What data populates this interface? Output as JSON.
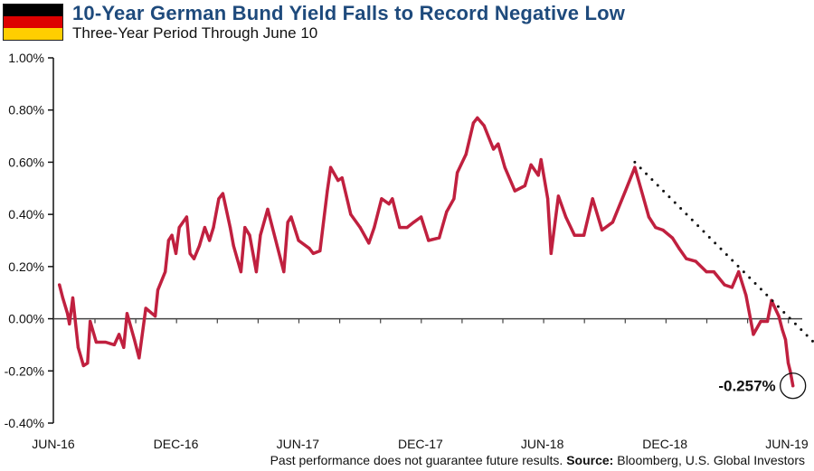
{
  "header": {
    "title": "10-Year German Bund Yield Falls to Record Negative Low",
    "subtitle": "Three-Year Period Through June 10",
    "flag_colors": [
      "#000000",
      "#dd0000",
      "#ffce00"
    ]
  },
  "footer": {
    "disclaimer": "Past performance does not guarantee future results.",
    "source_label": "Source:",
    "source_text": "Bloomberg, U.S. Global Investors"
  },
  "chart_data": {
    "type": "line",
    "title": "10-Year German Bund Yield Falls to Record Negative Low",
    "subtitle": "Three-Year Period Through June 10",
    "xlabel": "",
    "ylabel": "",
    "ylim": [
      -0.4,
      1.0
    ],
    "y_ticks": [
      "1.00%",
      "0.80%",
      "0.60%",
      "0.40%",
      "0.20%",
      "0.00%",
      "-0.20%",
      "-0.40%"
    ],
    "y_tick_values": [
      1.0,
      0.8,
      0.6,
      0.4,
      0.2,
      0.0,
      -0.2,
      -0.4
    ],
    "x_ticks": [
      {
        "label": "JUN-16",
        "date": "2016-06-01"
      },
      {
        "label": "DEC-16",
        "date": "2016-12-01"
      },
      {
        "label": "JUN-17",
        "date": "2017-06-01"
      },
      {
        "label": "DEC-17",
        "date": "2017-12-01"
      },
      {
        "label": "JUN-18",
        "date": "2018-06-01"
      },
      {
        "label": "DEC-18",
        "date": "2018-12-01"
      },
      {
        "label": "JUN-19",
        "date": "2019-06-01"
      }
    ],
    "grid": false,
    "line_color": "#c0203f",
    "series": [
      {
        "x": [
          "2016-06-10",
          "2016-06-15",
          "2016-06-22",
          "2016-06-25",
          "2016-06-30",
          "2016-07-08",
          "2016-07-16",
          "2016-07-22",
          "2016-07-26",
          "2016-08-04",
          "2016-08-18",
          "2016-08-31",
          "2016-09-07",
          "2016-09-14",
          "2016-09-19",
          "2016-09-30",
          "2016-10-07",
          "2016-10-17",
          "2016-10-31",
          "2016-11-04",
          "2016-11-15",
          "2016-11-20",
          "2016-11-25",
          "2016-12-01",
          "2016-12-06",
          "2016-12-17",
          "2016-12-22",
          "2016-12-28",
          "2017-01-05",
          "2017-01-13",
          "2017-01-20",
          "2017-01-26",
          "2017-02-03",
          "2017-02-09",
          "2017-02-20",
          "2017-02-25",
          "2017-03-08",
          "2017-03-14",
          "2017-03-21",
          "2017-03-31",
          "2017-04-06",
          "2017-04-17",
          "2017-05-01",
          "2017-05-11",
          "2017-05-17",
          "2017-05-22",
          "2017-06-02",
          "2017-06-18",
          "2017-06-24",
          "2017-07-04",
          "2017-07-15",
          "2017-07-20",
          "2017-07-31",
          "2017-08-06",
          "2017-08-19",
          "2017-09-02",
          "2017-09-15",
          "2017-09-23",
          "2017-10-04",
          "2017-10-15",
          "2017-10-20",
          "2017-10-31",
          "2017-11-11",
          "2017-11-21",
          "2017-12-02",
          "2017-12-13",
          "2017-12-29",
          "2018-01-09",
          "2018-01-20",
          "2018-01-25",
          "2018-02-07",
          "2018-02-18",
          "2018-02-24",
          "2018-03-06",
          "2018-03-20",
          "2018-03-27",
          "2018-04-06",
          "2018-04-21",
          "2018-05-06",
          "2018-05-15",
          "2018-05-26",
          "2018-05-30",
          "2018-06-09",
          "2018-06-14",
          "2018-06-25",
          "2018-07-06",
          "2018-07-19",
          "2018-08-02",
          "2018-08-15",
          "2018-08-29",
          "2018-09-14",
          "2018-10-03",
          "2018-10-17",
          "2018-10-27",
          "2018-11-07",
          "2018-11-17",
          "2018-11-28",
          "2018-12-12",
          "2018-12-22",
          "2019-01-02",
          "2019-01-16",
          "2019-02-01",
          "2019-02-12",
          "2019-02-28",
          "2019-03-11",
          "2019-03-21",
          "2019-04-01",
          "2019-04-12",
          "2019-04-23",
          "2019-05-03",
          "2019-05-09",
          "2019-05-20",
          "2019-05-25",
          "2019-05-30",
          "2019-06-03",
          "2019-06-06",
          "2019-06-10"
        ],
        "values": [
          0.13,
          0.08,
          0.02,
          -0.02,
          0.08,
          -0.11,
          -0.18,
          -0.17,
          -0.01,
          -0.09,
          -0.09,
          -0.1,
          -0.06,
          -0.11,
          0.02,
          -0.08,
          -0.15,
          0.04,
          0.01,
          0.11,
          0.18,
          0.3,
          0.32,
          0.25,
          0.35,
          0.39,
          0.25,
          0.23,
          0.28,
          0.35,
          0.3,
          0.35,
          0.46,
          0.48,
          0.35,
          0.28,
          0.18,
          0.35,
          0.32,
          0.18,
          0.32,
          0.42,
          0.28,
          0.18,
          0.37,
          0.39,
          0.3,
          0.27,
          0.25,
          0.26,
          0.49,
          0.58,
          0.53,
          0.54,
          0.4,
          0.35,
          0.29,
          0.35,
          0.46,
          0.44,
          0.46,
          0.35,
          0.35,
          0.37,
          0.39,
          0.3,
          0.31,
          0.41,
          0.46,
          0.56,
          0.63,
          0.75,
          0.77,
          0.74,
          0.65,
          0.67,
          0.58,
          0.49,
          0.51,
          0.59,
          0.55,
          0.61,
          0.46,
          0.25,
          0.47,
          0.39,
          0.32,
          0.32,
          0.46,
          0.34,
          0.37,
          0.49,
          0.58,
          0.49,
          0.39,
          0.35,
          0.34,
          0.31,
          0.27,
          0.23,
          0.22,
          0.18,
          0.18,
          0.13,
          0.12,
          0.18,
          0.09,
          -0.06,
          -0.01,
          -0.01,
          0.07,
          0.01,
          -0.04,
          -0.08,
          -0.17,
          -0.2,
          -0.257
        ]
      }
    ],
    "trendline": {
      "style": "dotted",
      "color": "#111111",
      "start": [
        "2018-10-17",
        0.6
      ],
      "end": [
        "2019-07-11",
        -0.09
      ]
    },
    "annotations": [
      {
        "label": "-0.257%",
        "date": "2019-06-10",
        "value": -0.257,
        "marker": "circle"
      }
    ]
  }
}
